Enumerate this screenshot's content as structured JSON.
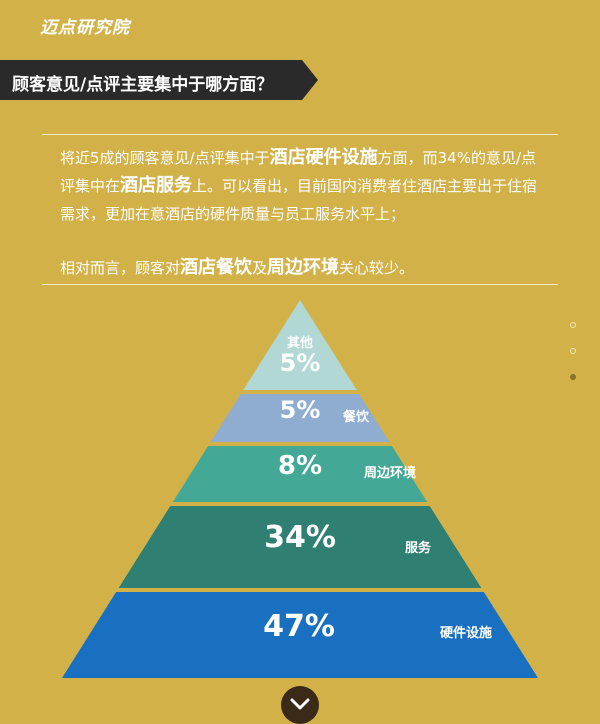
{
  "header": {
    "logo_text": "迈点研究院"
  },
  "banner": {
    "question": "顾客意见/点评主要集中于哪方面？"
  },
  "summary": {
    "p1": [
      {
        "t": "将近5成的顾客意见/点评集中于",
        "b": false
      },
      {
        "t": "酒店硬件设施",
        "b": true
      },
      {
        "t": "方面，而34%的意见/点评集中在",
        "b": false
      },
      {
        "t": "酒店服务",
        "b": true
      },
      {
        "t": "上。可以看出，目前国内消费者住酒店主要出于住宿需求，更加在意酒店的硬件质量与员工服务水平上；",
        "b": false
      }
    ],
    "p2": [
      {
        "t": "相对而言，顾客对",
        "b": false
      },
      {
        "t": "酒店餐饮",
        "b": true
      },
      {
        "t": "及",
        "b": false
      },
      {
        "t": "周边环境",
        "b": true
      },
      {
        "t": "关心较少。",
        "b": false
      }
    ]
  },
  "pager": {
    "count": 3,
    "active_index": 2
  },
  "chart_data": {
    "type": "pyramid",
    "segments": [
      {
        "label": "其他",
        "value": 5,
        "display": "5%",
        "color": "#b2d8d6"
      },
      {
        "label": "餐饮",
        "value": 5,
        "display": "5%",
        "color": "#8eadd0"
      },
      {
        "label": "周边环境",
        "value": 8,
        "display": "8%",
        "color": "#43a896"
      },
      {
        "label": "服务",
        "value": 34,
        "display": "34%",
        "color": "#2f7f73"
      },
      {
        "label": "硬件设施",
        "value": 47,
        "display": "47%",
        "color": "#1a70c0"
      }
    ]
  },
  "scroll": {
    "icon": "chevron-down-icon"
  }
}
